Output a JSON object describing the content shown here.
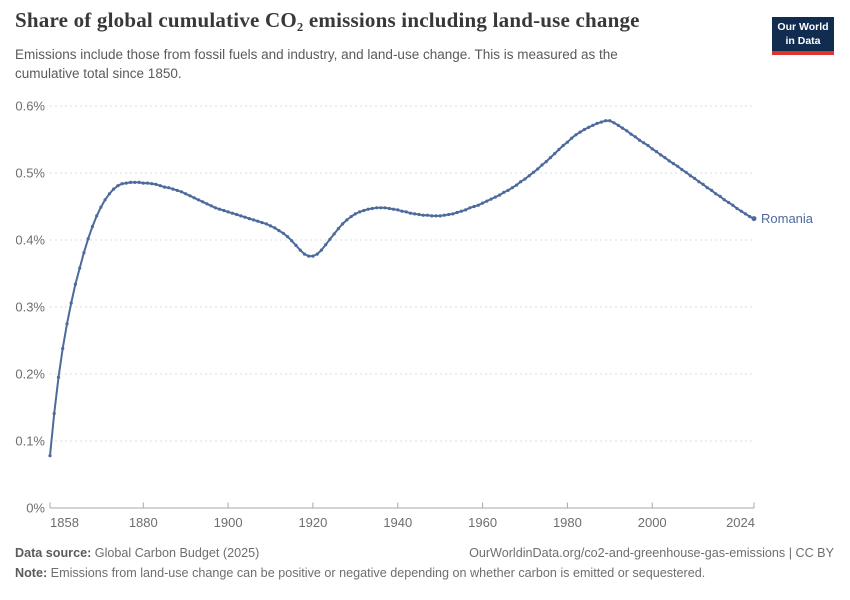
{
  "header": {
    "title": "Share of global cumulative CO₂ emissions including land-use change",
    "subtitle": "Emissions include those from fossil fuels and industry, and land-use change. This is measured as the cumulative total since 1850.",
    "logo": {
      "line1": "Our World",
      "line2": "in Data"
    }
  },
  "chart_data": {
    "type": "line",
    "title": "Share of global cumulative CO₂ emissions including land-use change",
    "entity": "Romania",
    "unit": "%",
    "year_start": 1858,
    "year_end": 2024,
    "x_ticks": [
      1858,
      1880,
      1900,
      1920,
      1940,
      1960,
      1980,
      2000,
      2024
    ],
    "y_ticks": [
      "0%",
      "0.1%",
      "0.2%",
      "0.3%",
      "0.4%",
      "0.5%",
      "0.6%"
    ],
    "ylim": [
      0,
      0.6
    ],
    "grid": "horizontal-dashed",
    "legend_position": "end-of-line-label",
    "point_markers": true,
    "series": [
      {
        "name": "Romania",
        "color": "#4C6A9C",
        "values": [
          0.078,
          0.141,
          0.195,
          0.238,
          0.275,
          0.306,
          0.334,
          0.358,
          0.381,
          0.402,
          0.42,
          0.436,
          0.449,
          0.46,
          0.469,
          0.476,
          0.481,
          0.484,
          0.485,
          0.486,
          0.486,
          0.486,
          0.485,
          0.485,
          0.484,
          0.483,
          0.481,
          0.479,
          0.478,
          0.476,
          0.474,
          0.472,
          0.469,
          0.466,
          0.463,
          0.46,
          0.457,
          0.454,
          0.451,
          0.448,
          0.446,
          0.444,
          0.442,
          0.44,
          0.438,
          0.436,
          0.434,
          0.432,
          0.43,
          0.428,
          0.426,
          0.424,
          0.421,
          0.418,
          0.414,
          0.41,
          0.405,
          0.399,
          0.392,
          0.385,
          0.379,
          0.376,
          0.376,
          0.379,
          0.385,
          0.393,
          0.401,
          0.409,
          0.417,
          0.424,
          0.43,
          0.435,
          0.439,
          0.442,
          0.444,
          0.446,
          0.447,
          0.448,
          0.448,
          0.448,
          0.447,
          0.446,
          0.445,
          0.443,
          0.442,
          0.44,
          0.439,
          0.438,
          0.437,
          0.437,
          0.436,
          0.436,
          0.436,
          0.437,
          0.438,
          0.439,
          0.441,
          0.443,
          0.445,
          0.448,
          0.45,
          0.452,
          0.455,
          0.458,
          0.461,
          0.464,
          0.467,
          0.471,
          0.474,
          0.478,
          0.482,
          0.487,
          0.491,
          0.496,
          0.501,
          0.506,
          0.512,
          0.517,
          0.523,
          0.529,
          0.535,
          0.541,
          0.546,
          0.552,
          0.557,
          0.561,
          0.565,
          0.568,
          0.571,
          0.574,
          0.576,
          0.578,
          0.578,
          0.575,
          0.571,
          0.567,
          0.563,
          0.558,
          0.554,
          0.549,
          0.545,
          0.541,
          0.536,
          0.532,
          0.527,
          0.523,
          0.518,
          0.514,
          0.51,
          0.505,
          0.501,
          0.496,
          0.492,
          0.487,
          0.483,
          0.478,
          0.474,
          0.469,
          0.465,
          0.46,
          0.456,
          0.452,
          0.447,
          0.443,
          0.439,
          0.435,
          0.432
        ]
      }
    ]
  },
  "footer": {
    "source_label": "Data source:",
    "source_text": " Global Carbon Budget (2025)",
    "link_text": "OurWorldinData.org/co2-and-greenhouse-gas-emissions | CC BY",
    "note_label": "Note:",
    "note_text": " Emissions from land-use change can be positive or negative depending on whether carbon is emitted or sequestered."
  },
  "colors": {
    "line": "#4C6A9C",
    "entity_label": "#4C6A9C",
    "grid": "#dedede",
    "axis": "#a8a8a8",
    "tick_text": "#6e6e6e",
    "logo_bg": "#102d50",
    "logo_red": "#dc352b"
  }
}
